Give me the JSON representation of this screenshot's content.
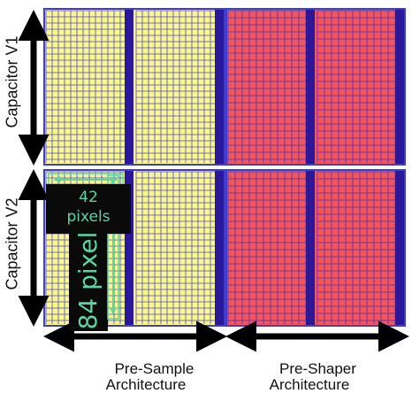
{
  "labels": {
    "cap_v1": "Capacitor V1",
    "cap_v2": "Capacitor V2",
    "pre_sample": "Pre-Sample\nArchitecture",
    "pre_shaper": "Pre-Shaper\nArchitecture",
    "width_callout": "42\npixels",
    "height_callout": "84 pixel"
  },
  "colors": {
    "yellow_fill": "#fbf78f",
    "red_fill": "#f1555d",
    "grid_line": "#2e2ec8",
    "column_bar": "#2a179a",
    "panel_border": "#3d3dcf",
    "callout_bg": "#0a0a0a",
    "callout_text": "#59d6a4",
    "arrow": "#000000"
  }
}
